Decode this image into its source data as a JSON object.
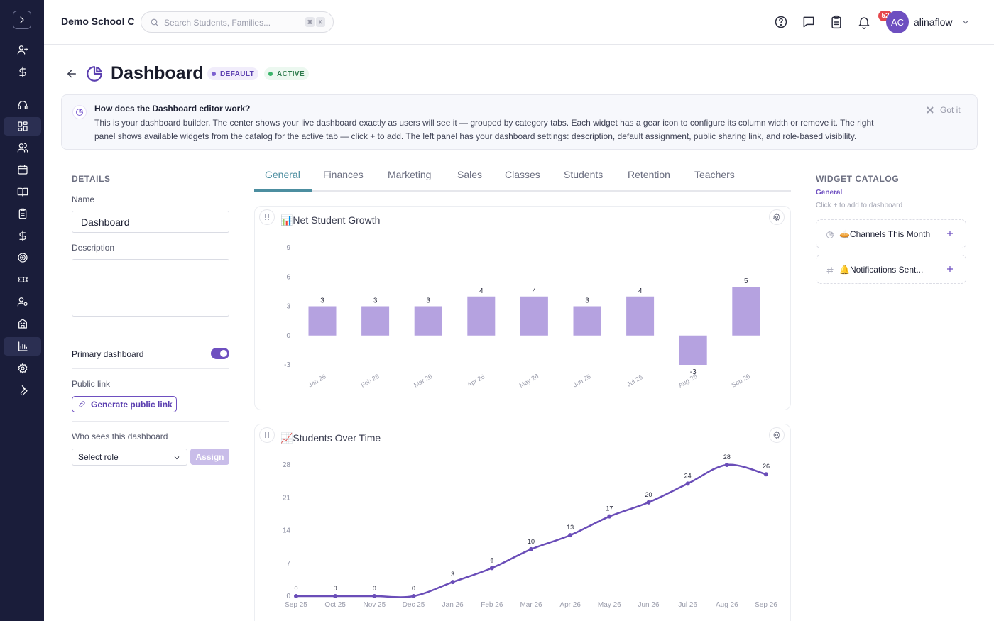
{
  "header": {
    "school_name": "Demo School C",
    "search_placeholder": "Search Students, Families...",
    "search_shortcut": [
      "⌘",
      "K"
    ],
    "notification_count": "52",
    "avatar_initials": "AC",
    "username": "alinaflow"
  },
  "page": {
    "title": "Dashboard",
    "badges": [
      "DEFAULT",
      "ACTIVE"
    ]
  },
  "info": {
    "title": "How does the Dashboard editor work?",
    "line1": "This is your dashboard builder. The center shows your live dashboard exactly as users will see it — grouped by category tabs. Each widget has a gear icon to configure its column width or remove it. The right",
    "line2": "panel shows available widgets from the catalog for the active tab — click + to add. The left panel has your dashboard settings: description, default assignment, public sharing link, and role-based visibility.",
    "dismiss_label": "Got it"
  },
  "details": {
    "section_title": "DETAILS",
    "name_label": "Name",
    "name_value": "Dashboard",
    "description_label": "Description",
    "description_value": "",
    "primary_label": "Primary dashboard",
    "primary_enabled": true,
    "public_link_label": "Public link",
    "generate_link_label": "Generate public link",
    "visibility_label": "Who sees this dashboard",
    "role_select_value": "Select role",
    "assign_label": "Assign"
  },
  "tabs": [
    "General",
    "Finances",
    "Marketing",
    "Sales",
    "Classes",
    "Students",
    "Retention",
    "Teachers"
  ],
  "active_tab": "General",
  "widgets": [
    {
      "title": "📊Net Student Growth"
    },
    {
      "title": "📈Students Over Time"
    }
  ],
  "catalog": {
    "title": "WIDGET CATALOG",
    "active_tab": "General",
    "hint": "Click + to add to dashboard",
    "items": [
      {
        "label": "🥧Channels This Month",
        "icon": "pie-chart-icon"
      },
      {
        "label": "🔔Notifications Sent...",
        "icon": "hash-icon"
      }
    ]
  },
  "colors": {
    "brand_purple": "#6e4fc0",
    "bar_fill": "#b5a2e0",
    "line": "#6a4db8",
    "tab_active": "#4c8ea0",
    "sidebar_bg": "#1a1d3a"
  },
  "chart_data": [
    {
      "type": "bar",
      "title": "📊Net Student Growth",
      "categories": [
        "Jan 26",
        "Feb 26",
        "Mar 26",
        "Apr 26",
        "May 26",
        "Jun 26",
        "Jul 26",
        "Aug 26",
        "Sep 26"
      ],
      "values": [
        3,
        3,
        3,
        4,
        4,
        3,
        4,
        -3,
        5
      ],
      "yticks": [
        9,
        6,
        3,
        0,
        -3
      ],
      "ylim": [
        -3,
        9
      ],
      "grid": false
    },
    {
      "type": "line",
      "title": "📈Students Over Time",
      "categories": [
        "Sep 25",
        "Oct 25",
        "Nov 25",
        "Dec 25",
        "Jan 26",
        "Feb 26",
        "Mar 26",
        "Apr 26",
        "May 26",
        "Jun 26",
        "Jul 26",
        "Aug 26",
        "Sep 26"
      ],
      "values": [
        0,
        0,
        0,
        0,
        3,
        6,
        10,
        13,
        17,
        20,
        24,
        28,
        26
      ],
      "yticks": [
        28,
        21,
        14,
        7,
        0
      ],
      "ylim": [
        0,
        28
      ],
      "grid": false
    }
  ]
}
